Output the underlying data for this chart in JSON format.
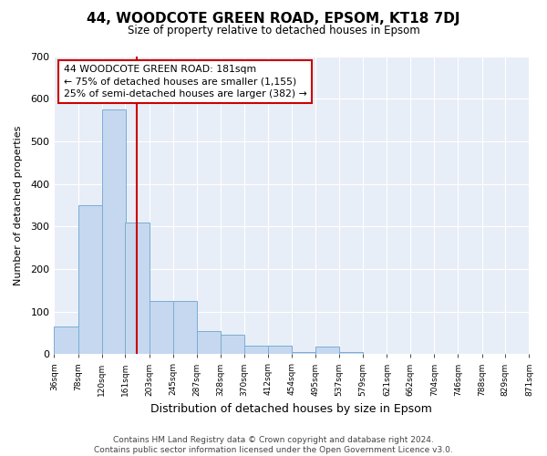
{
  "title": "44, WOODCOTE GREEN ROAD, EPSOM, KT18 7DJ",
  "subtitle": "Size of property relative to detached houses in Epsom",
  "xlabel": "Distribution of detached houses by size in Epsom",
  "ylabel": "Number of detached properties",
  "bar_color": "#c5d8f0",
  "bar_edge_color": "#7aadd4",
  "background_color": "#e8eef7",
  "vline_x": 181,
  "vline_color": "#cc0000",
  "bin_edges": [
    36,
    78,
    120,
    161,
    203,
    245,
    287,
    328,
    370,
    412,
    454,
    495,
    537,
    579,
    621,
    662,
    704,
    746,
    788,
    829,
    871
  ],
  "bin_labels": [
    "36sqm",
    "78sqm",
    "120sqm",
    "161sqm",
    "203sqm",
    "245sqm",
    "287sqm",
    "328sqm",
    "370sqm",
    "412sqm",
    "454sqm",
    "495sqm",
    "537sqm",
    "579sqm",
    "621sqm",
    "662sqm",
    "704sqm",
    "746sqm",
    "788sqm",
    "829sqm",
    "871sqm"
  ],
  "counts": [
    65,
    350,
    575,
    310,
    125,
    125,
    55,
    45,
    20,
    20,
    5,
    18,
    5,
    0,
    0,
    0,
    0,
    0,
    0,
    0
  ],
  "ylim": [
    0,
    700
  ],
  "yticks": [
    0,
    100,
    200,
    300,
    400,
    500,
    600,
    700
  ],
  "annotation_text": "44 WOODCOTE GREEN ROAD: 181sqm\n← 75% of detached houses are smaller (1,155)\n25% of semi-detached houses are larger (382) →",
  "annotation_box_color": "white",
  "annotation_box_edge": "#cc0000",
  "footnote": "Contains HM Land Registry data © Crown copyright and database right 2024.\nContains public sector information licensed under the Open Government Licence v3.0."
}
